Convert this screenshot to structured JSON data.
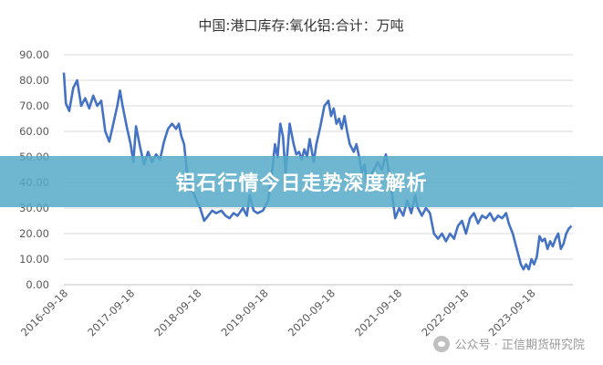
{
  "chart_data": {
    "type": "line",
    "title": "中国:港口库存:氧化铝:合计：万吨",
    "xlabel": "",
    "ylabel": "",
    "ylim": [
      0,
      90
    ],
    "y_ticks": [
      "0.00",
      "10.00",
      "20.00",
      "30.00",
      "40.00",
      "50.00",
      "60.00",
      "70.00",
      "80.00",
      "90.00"
    ],
    "x_ticks": [
      "2016-09-18",
      "2017-09-18",
      "2018-09-18",
      "2019-09-18",
      "2020-09-18",
      "2021-09-18",
      "2022-09-18",
      "2023-09-18"
    ],
    "grid": true,
    "line_color": "#4472c4",
    "series": [
      {
        "values": [
          [
            2016.72,
            83
          ],
          [
            2016.75,
            71
          ],
          [
            2016.8,
            68
          ],
          [
            2016.86,
            77
          ],
          [
            2016.92,
            80
          ],
          [
            2016.98,
            70
          ],
          [
            2017.04,
            73
          ],
          [
            2017.1,
            69
          ],
          [
            2017.16,
            74
          ],
          [
            2017.22,
            70
          ],
          [
            2017.28,
            72
          ],
          [
            2017.34,
            60
          ],
          [
            2017.4,
            56
          ],
          [
            2017.46,
            63
          ],
          [
            2017.52,
            70
          ],
          [
            2017.56,
            76
          ],
          [
            2017.6,
            70
          ],
          [
            2017.66,
            62
          ],
          [
            2017.72,
            55
          ],
          [
            2017.76,
            48
          ],
          [
            2017.8,
            62
          ],
          [
            2017.86,
            54
          ],
          [
            2017.92,
            47
          ],
          [
            2017.98,
            52
          ],
          [
            2018.04,
            48
          ],
          [
            2018.1,
            51
          ],
          [
            2018.16,
            49
          ],
          [
            2018.22,
            56
          ],
          [
            2018.28,
            61
          ],
          [
            2018.34,
            63
          ],
          [
            2018.4,
            61
          ],
          [
            2018.44,
            63
          ],
          [
            2018.48,
            58
          ],
          [
            2018.52,
            55
          ],
          [
            2018.56,
            45
          ],
          [
            2018.6,
            38
          ],
          [
            2018.66,
            36
          ],
          [
            2018.72,
            32
          ],
          [
            2018.76,
            30
          ],
          [
            2018.82,
            25
          ],
          [
            2018.88,
            27
          ],
          [
            2018.94,
            29
          ],
          [
            2019.0,
            28
          ],
          [
            2019.08,
            29
          ],
          [
            2019.14,
            27
          ],
          [
            2019.2,
            26
          ],
          [
            2019.26,
            28
          ],
          [
            2019.32,
            27
          ],
          [
            2019.4,
            30
          ],
          [
            2019.46,
            27
          ],
          [
            2019.5,
            35
          ],
          [
            2019.56,
            29
          ],
          [
            2019.62,
            28
          ],
          [
            2019.7,
            29
          ],
          [
            2019.74,
            31
          ],
          [
            2019.78,
            33
          ],
          [
            2019.84,
            45
          ],
          [
            2019.88,
            55
          ],
          [
            2019.92,
            50
          ],
          [
            2019.96,
            63
          ],
          [
            2020.0,
            58
          ],
          [
            2020.04,
            43
          ],
          [
            2020.1,
            63
          ],
          [
            2020.16,
            55
          ],
          [
            2020.2,
            51
          ],
          [
            2020.24,
            52
          ],
          [
            2020.28,
            49
          ],
          [
            2020.32,
            53
          ],
          [
            2020.36,
            50
          ],
          [
            2020.4,
            57
          ],
          [
            2020.46,
            48
          ],
          [
            2020.5,
            55
          ],
          [
            2020.56,
            62
          ],
          [
            2020.62,
            70
          ],
          [
            2020.68,
            72
          ],
          [
            2020.72,
            66
          ],
          [
            2020.76,
            69
          ],
          [
            2020.8,
            63
          ],
          [
            2020.84,
            65
          ],
          [
            2020.88,
            61
          ],
          [
            2020.92,
            66
          ],
          [
            2020.96,
            60
          ],
          [
            2021.0,
            55
          ],
          [
            2021.06,
            52
          ],
          [
            2021.1,
            55
          ],
          [
            2021.14,
            50
          ],
          [
            2021.18,
            44
          ],
          [
            2021.22,
            47
          ],
          [
            2021.26,
            40
          ],
          [
            2021.3,
            42
          ],
          [
            2021.36,
            45
          ],
          [
            2021.42,
            48
          ],
          [
            2021.48,
            45
          ],
          [
            2021.54,
            51
          ],
          [
            2021.58,
            45
          ],
          [
            2021.62,
            38
          ],
          [
            2021.68,
            26
          ],
          [
            2021.74,
            30
          ],
          [
            2021.8,
            27
          ],
          [
            2021.86,
            33
          ],
          [
            2021.92,
            28
          ],
          [
            2021.98,
            35
          ],
          [
            2022.02,
            30
          ],
          [
            2022.08,
            27
          ],
          [
            2022.14,
            30
          ],
          [
            2022.2,
            28
          ],
          [
            2022.26,
            20
          ],
          [
            2022.32,
            18
          ],
          [
            2022.38,
            20
          ],
          [
            2022.44,
            17
          ],
          [
            2022.5,
            20
          ],
          [
            2022.56,
            18
          ],
          [
            2022.62,
            23
          ],
          [
            2022.68,
            25
          ],
          [
            2022.74,
            20
          ],
          [
            2022.8,
            26
          ],
          [
            2022.86,
            28
          ],
          [
            2022.92,
            24
          ],
          [
            2022.98,
            27
          ],
          [
            2023.04,
            26
          ],
          [
            2023.1,
            28
          ],
          [
            2023.16,
            25
          ],
          [
            2023.22,
            27
          ],
          [
            2023.28,
            26
          ],
          [
            2023.34,
            28
          ],
          [
            2023.38,
            24
          ],
          [
            2023.44,
            20
          ],
          [
            2023.5,
            14
          ],
          [
            2023.56,
            8
          ],
          [
            2023.6,
            6
          ],
          [
            2023.64,
            8
          ],
          [
            2023.68,
            6
          ],
          [
            2023.72,
            10
          ],
          [
            2023.76,
            8
          ],
          [
            2023.8,
            11
          ],
          [
            2023.84,
            19
          ],
          [
            2023.88,
            17
          ],
          [
            2023.92,
            18
          ],
          [
            2023.96,
            14
          ],
          [
            2024.0,
            17
          ],
          [
            2024.04,
            15
          ],
          [
            2024.08,
            18
          ],
          [
            2024.12,
            20
          ],
          [
            2024.16,
            14
          ],
          [
            2024.2,
            16
          ],
          [
            2024.24,
            20
          ],
          [
            2024.28,
            22
          ],
          [
            2024.32,
            23
          ]
        ]
      }
    ]
  },
  "overlay": {
    "banner_text": "铝石行情今日走势深度解析",
    "watermark_text": "公众号 · 正信期货研究院"
  }
}
